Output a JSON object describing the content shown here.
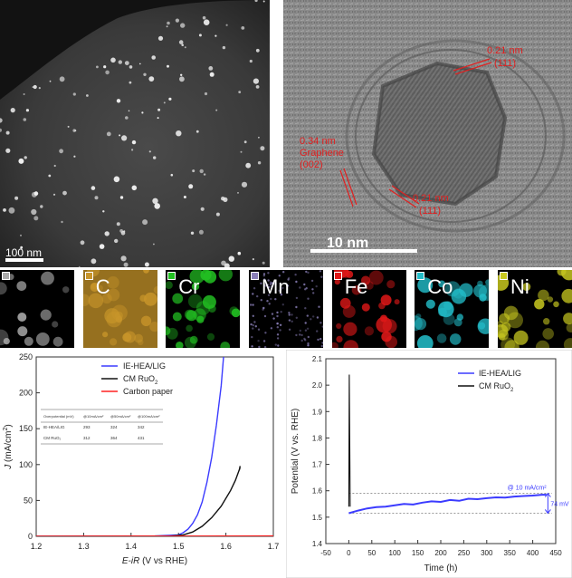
{
  "stem": {
    "scale_bar": "100 nm"
  },
  "hrtem": {
    "scale_bar": "10 nm",
    "annotations": {
      "top_d": "0.21 nm",
      "top_plane": "(111)",
      "left_d": "0.34 nm",
      "left_name": "Graphene",
      "left_plane": "(002)",
      "bottom_d": "0.21 nm",
      "bottom_plane": "(111)"
    }
  },
  "eds_maps": {
    "tiles": [
      {
        "label": "",
        "color": "#aaaaaa"
      },
      {
        "label": "C",
        "color": "#c8952a"
      },
      {
        "label": "Cr",
        "color": "#22c022"
      },
      {
        "label": "Mn",
        "color": "#8a7fb8"
      },
      {
        "label": "Fe",
        "color": "#e01818"
      },
      {
        "label": "Co",
        "color": "#22bcc8"
      },
      {
        "label": "Ni",
        "color": "#c8c820"
      }
    ]
  },
  "chart_data": [
    {
      "type": "line",
      "xlabel_italic": "E-iR",
      "xlabel_rest": " (V vs RHE)",
      "ylabel_italic": "J",
      "ylabel_rest": " (mA/cm",
      "ylabel_sup": "2",
      "ylabel_end": ")",
      "xlim": [
        1.2,
        1.7
      ],
      "ylim": [
        0,
        250
      ],
      "xticks": [
        "1.2",
        "1.3",
        "1.4",
        "1.5",
        "1.6",
        "1.7"
      ],
      "yticks": [
        "0",
        "50",
        "100",
        "150",
        "200",
        "250"
      ],
      "legend": {
        "placement": "top-right",
        "entries": [
          {
            "label": "IE-HEA/LIG",
            "sub": "",
            "color": "#3b3bff"
          },
          {
            "label": "CM RuO",
            "sub": "2",
            "color": "#111111"
          },
          {
            "label": "Carbon paper",
            "sub": "",
            "color": "#ff2020"
          }
        ]
      },
      "series": [
        {
          "name": "IE-HEA/LIG",
          "color": "#3b3bff",
          "x": [
            1.2,
            1.45,
            1.5,
            1.51,
            1.52,
            1.53,
            1.54,
            1.55,
            1.56,
            1.57,
            1.58,
            1.59,
            1.595
          ],
          "y": [
            0,
            0.5,
            2,
            5,
            10,
            18,
            30,
            48,
            75,
            110,
            155,
            210,
            250
          ]
        },
        {
          "name": "CM RuO2",
          "color": "#111111",
          "x": [
            1.2,
            1.48,
            1.51,
            1.53,
            1.55,
            1.57,
            1.59,
            1.61,
            1.62,
            1.63,
            1.628,
            1.63
          ],
          "y": [
            0,
            0.3,
            2,
            6,
            14,
            26,
            42,
            64,
            78,
            96,
            92,
            98
          ]
        },
        {
          "name": "Carbon paper",
          "color": "#ff2020",
          "x": [
            1.2,
            1.7
          ],
          "y": [
            0,
            0.5
          ]
        }
      ],
      "inset_table": {
        "headers": [
          "Overpotential (mV)",
          "@10mA/cm²",
          "@50mA/cm²",
          "@100mA/cm²"
        ],
        "rows": [
          [
            "IE-HEA/LIG",
            "293",
            "324",
            "342"
          ],
          [
            "CM RuO₂",
            "312",
            "364",
            "431"
          ]
        ]
      }
    },
    {
      "type": "line",
      "xlabel": "Time (h)",
      "ylabel": "Potential (V vs. RHE)",
      "xlim": [
        -50,
        450
      ],
      "ylim": [
        1.4,
        2.1
      ],
      "xticks": [
        "-50",
        "0",
        "50",
        "100",
        "150",
        "200",
        "250",
        "300",
        "350",
        "400",
        "450"
      ],
      "yticks": [
        "1.4",
        "1.5",
        "1.6",
        "1.7",
        "1.8",
        "1.9",
        "2.0",
        "2.1"
      ],
      "legend": {
        "placement": "top-right",
        "entries": [
          {
            "label": "IE-HEA/LIG",
            "sub": "",
            "color": "#3b3bff"
          },
          {
            "label": "CM RuO",
            "sub": "2",
            "color": "#111111"
          }
        ]
      },
      "series": [
        {
          "name": "IE-HEA/LIG",
          "color": "#3b3bff",
          "x": [
            0,
            20,
            40,
            60,
            80,
            100,
            120,
            140,
            160,
            180,
            200,
            220,
            240,
            260,
            280,
            300,
            320,
            340,
            360,
            380,
            400,
            420,
            430
          ],
          "y": [
            1.515,
            1.525,
            1.533,
            1.538,
            1.54,
            1.545,
            1.55,
            1.548,
            1.555,
            1.56,
            1.558,
            1.565,
            1.562,
            1.57,
            1.568,
            1.572,
            1.575,
            1.574,
            1.578,
            1.58,
            1.582,
            1.585,
            1.585
          ]
        },
        {
          "name": "CM RuO2",
          "color": "#111111",
          "x": [
            0,
            1,
            2,
            3
          ],
          "y": [
            1.54,
            2.04,
            1.8,
            1.54
          ]
        }
      ],
      "annotations": {
        "current": "@ 10 mA/cm²",
        "delta": "74 mV"
      }
    }
  ]
}
